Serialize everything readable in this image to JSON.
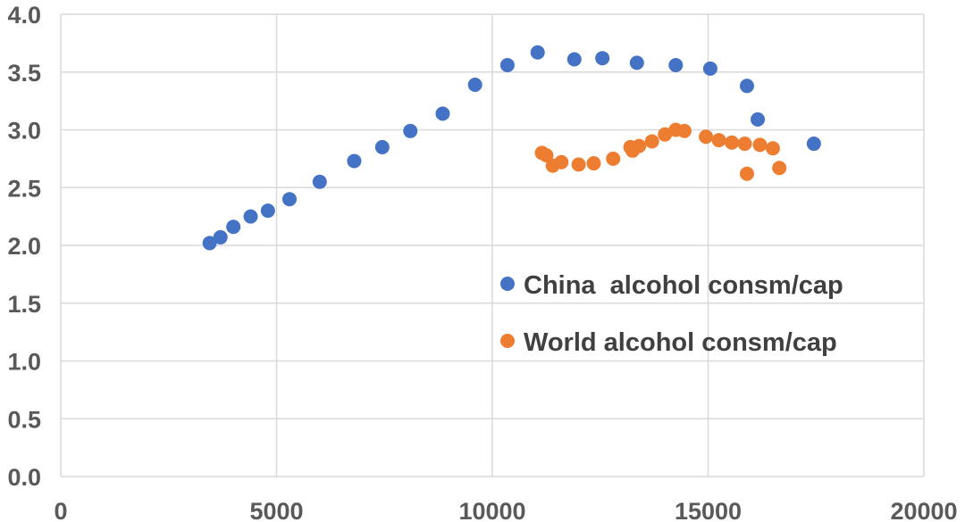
{
  "chart_data": {
    "type": "scatter",
    "xlim": [
      0,
      20000
    ],
    "ylim": [
      0,
      4
    ],
    "x_ticks": [
      "0",
      "5000",
      "10000",
      "15000",
      "20000"
    ],
    "y_ticks": [
      "0.0",
      "0.5",
      "1.0",
      "1.5",
      "2.0",
      "2.5",
      "3.0",
      "3.5",
      "4.0"
    ],
    "grid": true,
    "legend_position": "center-right",
    "series": [
      {
        "name": "China  alcohol consm/cap",
        "color": "#4472c4",
        "points": [
          [
            3450,
            2.02
          ],
          [
            3700,
            2.07
          ],
          [
            4000,
            2.16
          ],
          [
            4400,
            2.25
          ],
          [
            4800,
            2.3
          ],
          [
            5300,
            2.4
          ],
          [
            6000,
            2.55
          ],
          [
            6800,
            2.73
          ],
          [
            7450,
            2.85
          ],
          [
            8100,
            2.99
          ],
          [
            8850,
            3.14
          ],
          [
            9600,
            3.39
          ],
          [
            10350,
            3.56
          ],
          [
            11050,
            3.67
          ],
          [
            11900,
            3.61
          ],
          [
            12550,
            3.62
          ],
          [
            13350,
            3.58
          ],
          [
            14250,
            3.56
          ],
          [
            15050,
            3.53
          ],
          [
            15900,
            3.38
          ],
          [
            16150,
            3.09
          ],
          [
            17450,
            2.88
          ]
        ]
      },
      {
        "name": "World alcohol consm/cap",
        "color": "#ed7d31",
        "points": [
          [
            11150,
            2.8
          ],
          [
            11250,
            2.78
          ],
          [
            11400,
            2.69
          ],
          [
            11600,
            2.72
          ],
          [
            12000,
            2.7
          ],
          [
            12350,
            2.71
          ],
          [
            12800,
            2.75
          ],
          [
            13200,
            2.85
          ],
          [
            13250,
            2.82
          ],
          [
            13400,
            2.86
          ],
          [
            13700,
            2.9
          ],
          [
            14000,
            2.96
          ],
          [
            14250,
            3.0
          ],
          [
            14450,
            2.99
          ],
          [
            14950,
            2.94
          ],
          [
            15250,
            2.91
          ],
          [
            15550,
            2.89
          ],
          [
            15850,
            2.88
          ],
          [
            16200,
            2.87
          ],
          [
            16500,
            2.84
          ],
          [
            15900,
            2.62
          ],
          [
            16650,
            2.67
          ]
        ]
      }
    ]
  }
}
